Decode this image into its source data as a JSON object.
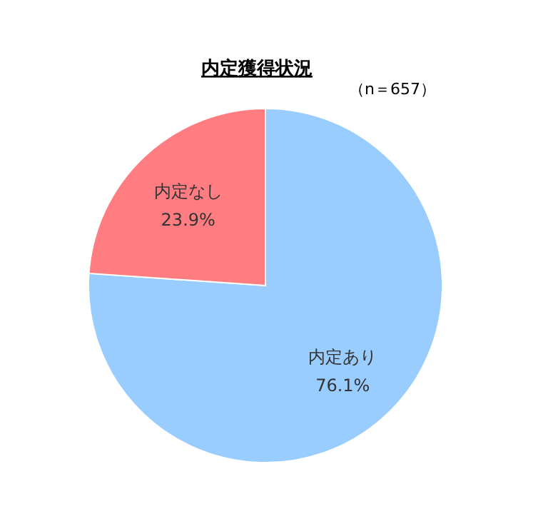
{
  "chart_data": {
    "type": "pie",
    "title": "内定獲得状況",
    "subtitle": "（n＝657）",
    "categories": [
      "内定あり",
      "内定なし"
    ],
    "values": [
      76.1,
      23.9
    ],
    "colors": [
      "#99ccff",
      "#ff7c80"
    ],
    "value_labels": [
      "76.1%",
      "23.9%"
    ],
    "legend": false
  }
}
